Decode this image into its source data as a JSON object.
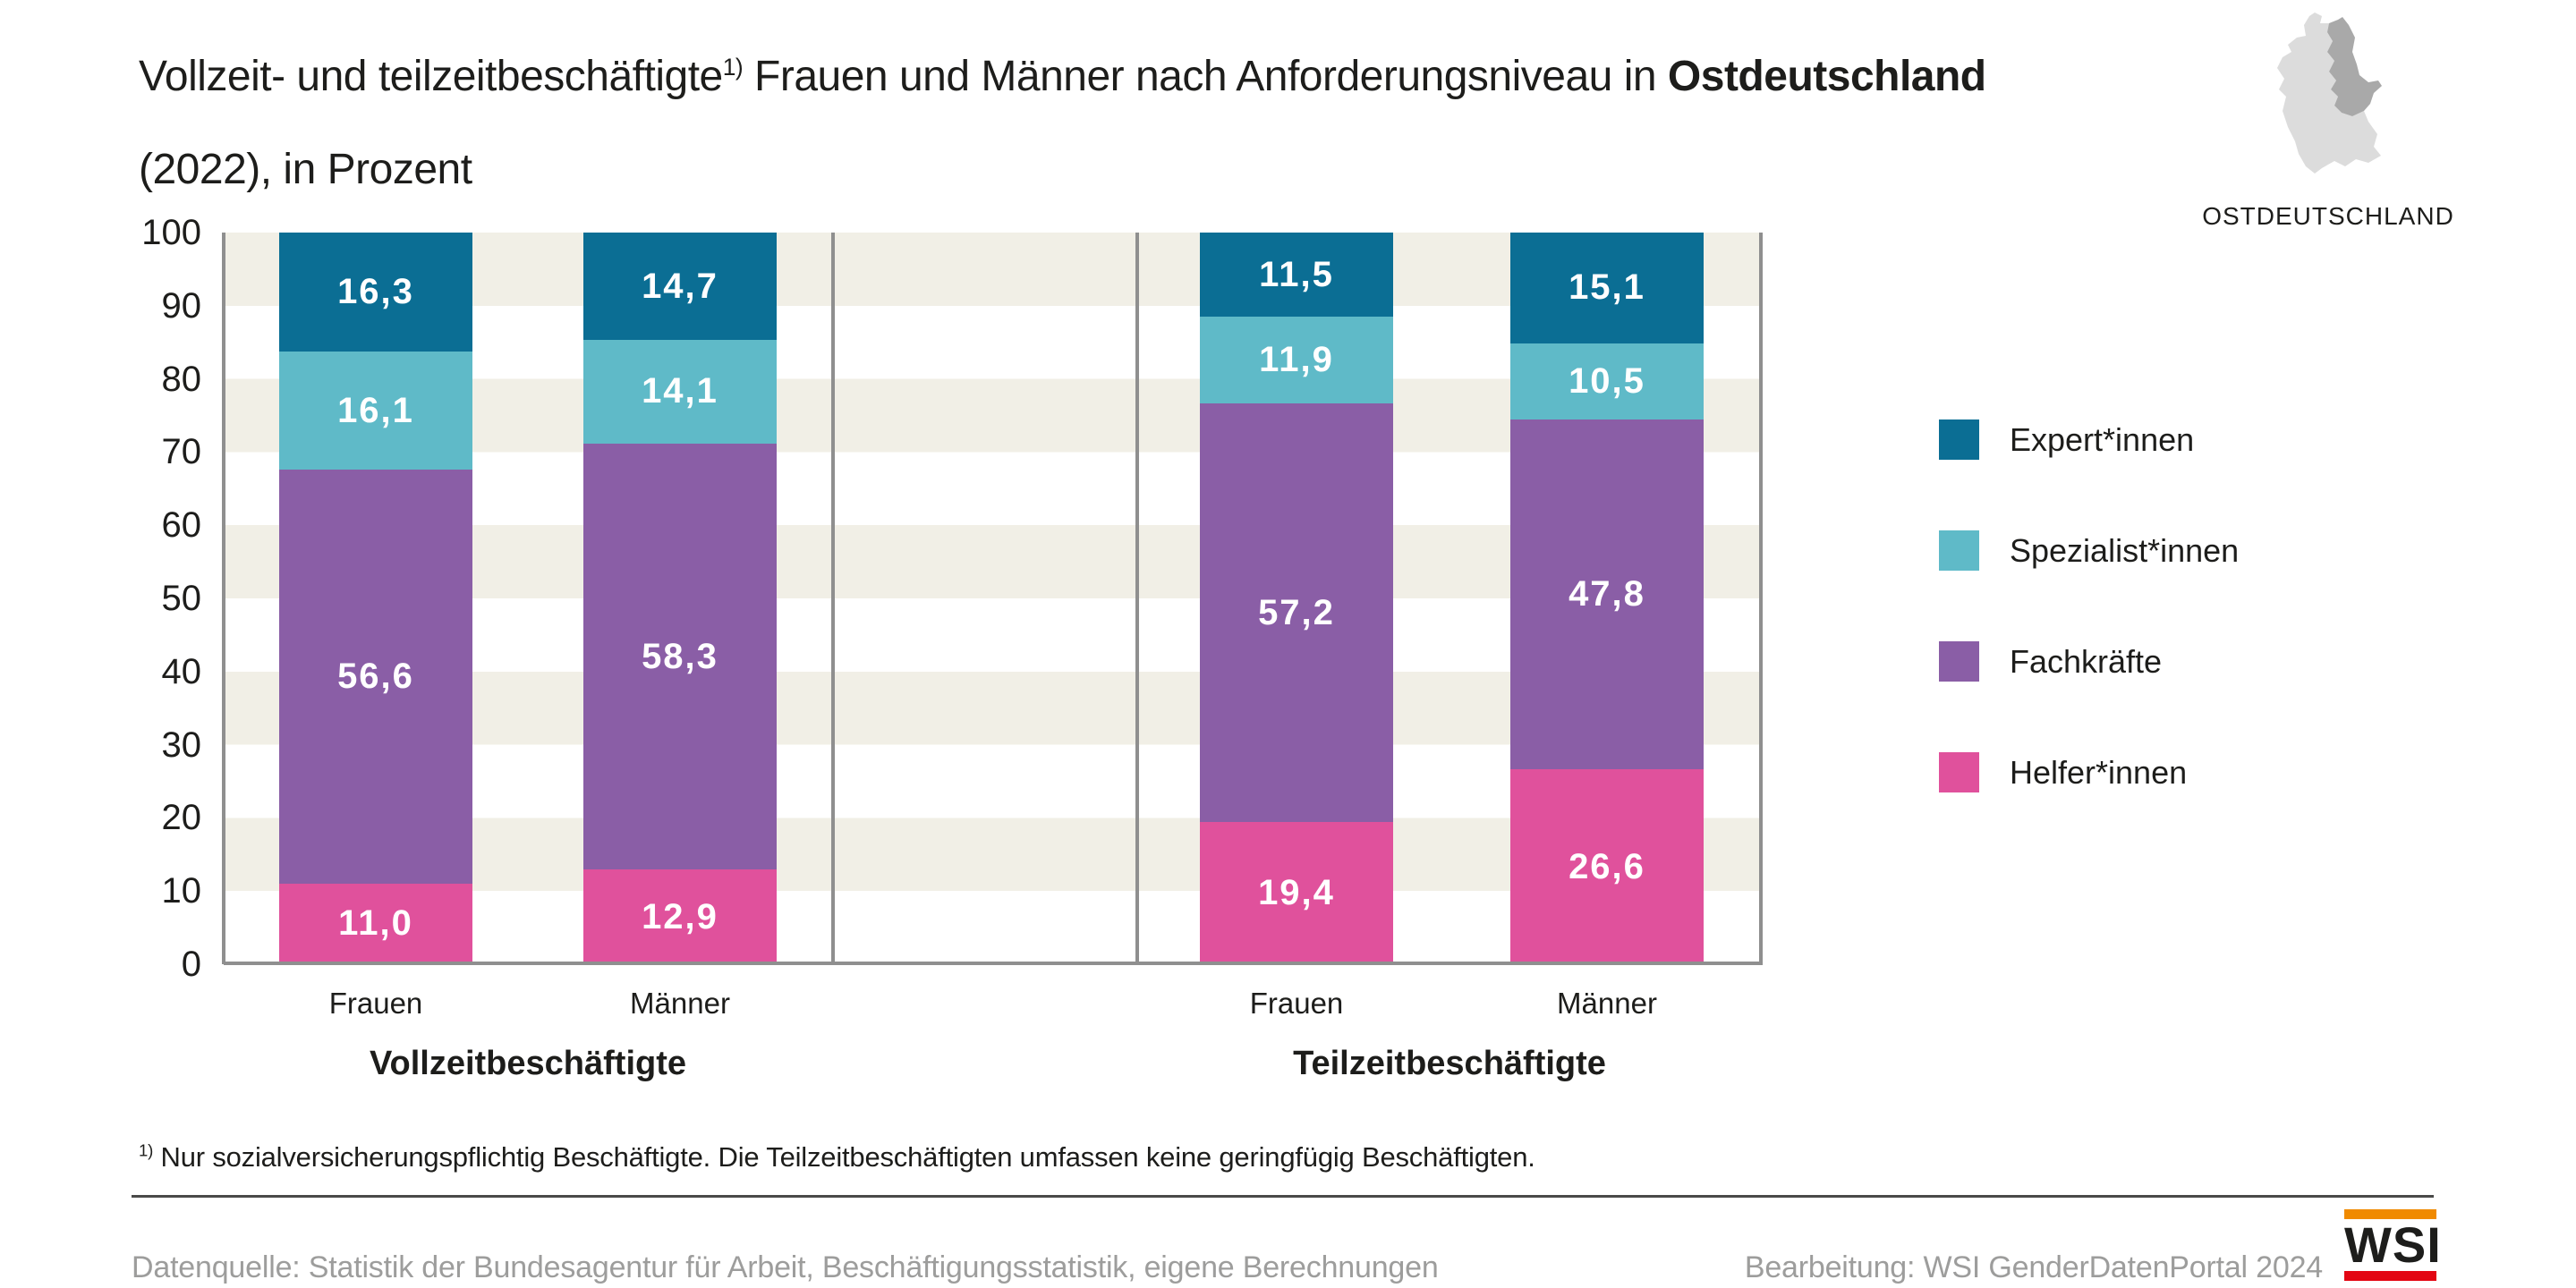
{
  "title": {
    "part1": "Vollzeit- und teilzeitbeschäftigte",
    "footnote_marker": "1)",
    "part2": " Frauen und Männer nach Anforderungsniveau in ",
    "region": "Ostdeutschland",
    "part3": "(2022), in Prozent"
  },
  "region_badge": {
    "label": "OSTDEUTSCHLAND"
  },
  "chart_data": {
    "type": "bar",
    "stacked": true,
    "title": "Vollzeit- und teilzeitbeschäftigte Frauen und Männer nach Anforderungsniveau in Ostdeutschland (2022), in Prozent",
    "unit": "Prozent",
    "ylim": [
      0,
      100
    ],
    "yticks": [
      100,
      90,
      80,
      70,
      60,
      50,
      40,
      30,
      20,
      10,
      0
    ],
    "grid": "alternating horizontal bands (beige #f1efe6 / white), band height 10 units",
    "legend_position": "right",
    "categories": [
      "Frauen",
      "Männer",
      "Frauen",
      "Männer"
    ],
    "group_labels": [
      "Vollzeitbeschäftigte",
      "Teilzeitbeschäftigte"
    ],
    "groups": [
      {
        "label": "Vollzeitbeschäftigte",
        "category_indexes": [
          0,
          1
        ]
      },
      {
        "label": "Teilzeitbeschäftigte",
        "category_indexes": [
          2,
          3
        ]
      }
    ],
    "stack_order_top_to_bottom": [
      "Expert*innen",
      "Spezialist*innen",
      "Fachkräfte",
      "Helfer*innen"
    ],
    "series": [
      {
        "name": "Expert*innen",
        "color": "#0b6e94",
        "values": [
          16.3,
          14.7,
          11.5,
          15.1
        ],
        "display": [
          "16,3",
          "14,7",
          "11,5",
          "15,1"
        ]
      },
      {
        "name": "Spezialist*innen",
        "color": "#5fbac8",
        "values": [
          16.1,
          14.1,
          11.9,
          10.5
        ],
        "display": [
          "16,1",
          "14,1",
          "11,9",
          "10,5"
        ]
      },
      {
        "name": "Fachkräfte",
        "color": "#8a5ea6",
        "values": [
          56.6,
          58.3,
          57.2,
          47.8
        ],
        "display": [
          "56,6",
          "58,3",
          "57,2",
          "47,8"
        ]
      },
      {
        "name": "Helfer*innen",
        "color": "#e0519c",
        "values": [
          11.0,
          12.9,
          19.4,
          26.6
        ],
        "display": [
          "11,0",
          "12,9",
          "19,4",
          "26,6"
        ]
      }
    ]
  },
  "legend": {
    "items": [
      {
        "label": "Expert*innen",
        "color": "#0b6e94"
      },
      {
        "label": "Spezialist*innen",
        "color": "#5fbac8"
      },
      {
        "label": "Fachkräfte",
        "color": "#8a5ea6"
      },
      {
        "label": "Helfer*innen",
        "color": "#e0519c"
      }
    ]
  },
  "footnote": {
    "marker": "1)",
    "text": " Nur sozialversicherungspflichtig Beschäftigte. Die Teilzeitbeschäftigten umfassen keine geringfügig Beschäftigten."
  },
  "footer": {
    "source": "Datenquelle: Statistik der Bundesagentur für Arbeit, Beschäftigungsstatistik, eigene Berechnungen",
    "credit": "Bearbeitung: WSI GenderDatenPortal 2024",
    "logo_text": "WSI"
  },
  "colors": {
    "stripe_beige": "#f1efe6",
    "grid_gray": "#8f8f8f",
    "footer_gray": "#9d9d9c",
    "map_west_gray": "#dcdcdc",
    "map_east_gray": "#a9a9a9",
    "logo_orange": "#f08a00",
    "logo_red": "#e30613"
  }
}
